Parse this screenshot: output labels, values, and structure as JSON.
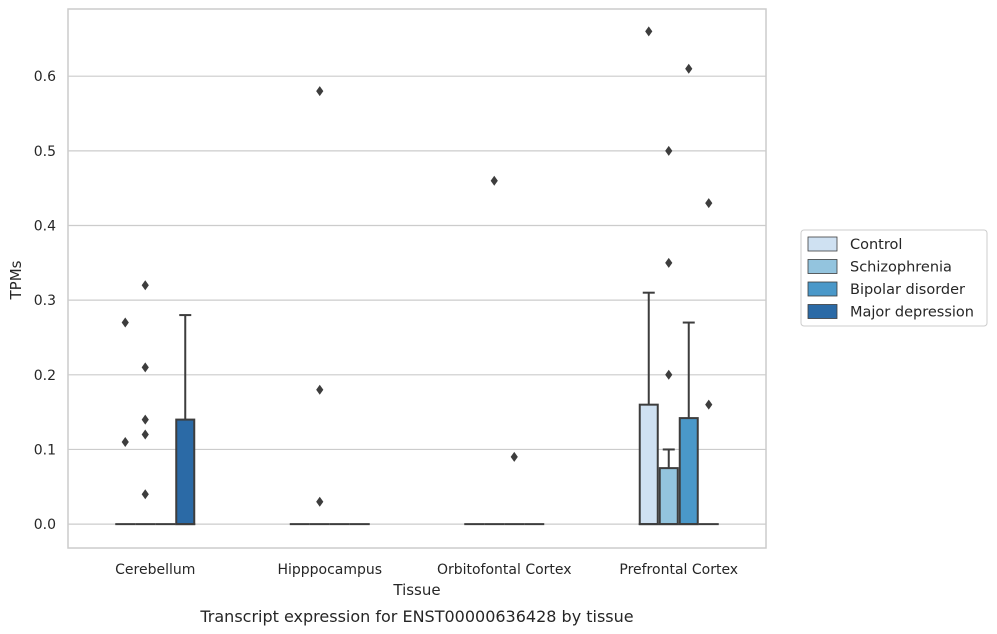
{
  "caption": "Transcript expression for ENST00000636428 by tissue",
  "chart_data": {
    "type": "box",
    "xlabel": "Tissue",
    "ylabel": "TPMs",
    "ylim": [
      -0.032,
      0.69
    ],
    "yticks": [
      0.0,
      0.1,
      0.2,
      0.3,
      0.4,
      0.5,
      0.6
    ],
    "ytick_labels": [
      "0.0",
      "0.1",
      "0.2",
      "0.3",
      "0.4",
      "0.5",
      "0.6"
    ],
    "grid": true,
    "legend_position": "right",
    "categories": [
      "Cerebellum",
      "Hipppocampus",
      "Orbitofontal Cortex",
      "Prefrontal Cortex"
    ],
    "series": [
      {
        "name": "Control",
        "color": "#cfe1f2",
        "boxes": [
          {
            "q1": 0,
            "median": 0,
            "q3": 0,
            "whisker_low": 0,
            "whisker_high": 0,
            "outliers": [
              0.27,
              0.11
            ]
          },
          {
            "q1": 0,
            "median": 0,
            "q3": 0,
            "whisker_low": 0,
            "whisker_high": 0,
            "outliers": []
          },
          {
            "q1": 0,
            "median": 0,
            "q3": 0,
            "whisker_low": 0,
            "whisker_high": 0,
            "outliers": []
          },
          {
            "q1": 0,
            "median": 0,
            "q3": 0.16,
            "whisker_low": 0,
            "whisker_high": 0.31,
            "outliers": [
              0.66
            ]
          }
        ]
      },
      {
        "name": "Schizophrenia",
        "color": "#93c4de",
        "boxes": [
          {
            "q1": 0,
            "median": 0,
            "q3": 0,
            "whisker_low": 0,
            "whisker_high": 0,
            "outliers": [
              0.32,
              0.21,
              0.14,
              0.12,
              0.04
            ]
          },
          {
            "q1": 0,
            "median": 0,
            "q3": 0,
            "whisker_low": 0,
            "whisker_high": 0,
            "outliers": [
              0.58,
              0.18,
              0.03
            ]
          },
          {
            "q1": 0,
            "median": 0,
            "q3": 0,
            "whisker_low": 0,
            "whisker_high": 0,
            "outliers": [
              0.46
            ]
          },
          {
            "q1": 0,
            "median": 0,
            "q3": 0.075,
            "whisker_low": 0,
            "whisker_high": 0.1,
            "outliers": [
              0.5,
              0.35,
              0.2
            ]
          }
        ]
      },
      {
        "name": "Bipolar disorder",
        "color": "#4a98c9",
        "boxes": [
          {
            "q1": 0,
            "median": 0,
            "q3": 0,
            "whisker_low": 0,
            "whisker_high": 0,
            "outliers": []
          },
          {
            "q1": 0,
            "median": 0,
            "q3": 0,
            "whisker_low": 0,
            "whisker_high": 0,
            "outliers": []
          },
          {
            "q1": 0,
            "median": 0,
            "q3": 0,
            "whisker_low": 0,
            "whisker_high": 0,
            "outliers": [
              0.09
            ]
          },
          {
            "q1": 0,
            "median": 0,
            "q3": 0.142,
            "whisker_low": 0,
            "whisker_high": 0.27,
            "outliers": [
              0.61
            ]
          }
        ]
      },
      {
        "name": "Major depression",
        "color": "#2b6aa6",
        "boxes": [
          {
            "q1": 0,
            "median": 0,
            "q3": 0.14,
            "whisker_low": 0,
            "whisker_high": 0.28,
            "outliers": []
          },
          {
            "q1": 0,
            "median": 0,
            "q3": 0,
            "whisker_low": 0,
            "whisker_high": 0,
            "outliers": []
          },
          {
            "q1": 0,
            "median": 0,
            "q3": 0,
            "whisker_low": 0,
            "whisker_high": 0,
            "outliers": []
          },
          {
            "q1": 0,
            "median": 0,
            "q3": 0,
            "whisker_low": 0,
            "whisker_high": 0,
            "outliers": [
              0.43,
              0.16
            ]
          }
        ]
      }
    ],
    "colors": {
      "grid": "#cccccc",
      "frame": "#cccccc",
      "line": "#3d3d3d",
      "text": "#262626"
    }
  }
}
